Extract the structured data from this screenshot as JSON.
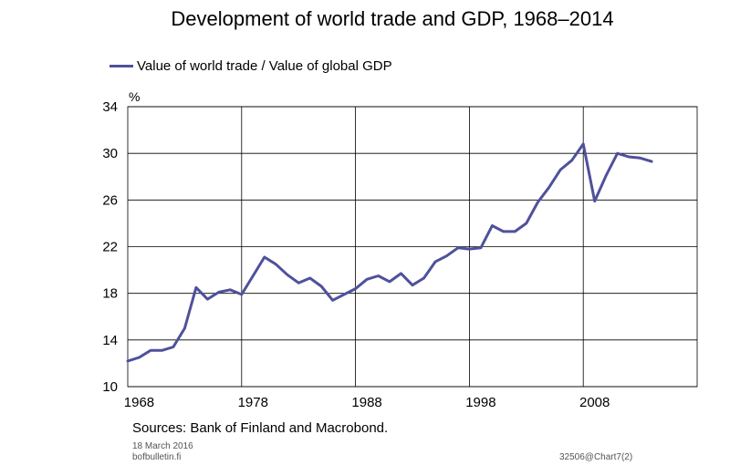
{
  "chart_data": {
    "type": "line",
    "title": "Development of world trade and GDP, 1968–2014",
    "ylabel": "%",
    "ylim": [
      10,
      34
    ],
    "yticks": [
      10,
      14,
      18,
      22,
      26,
      30,
      34
    ],
    "xlim": [
      1967,
      2017
    ],
    "xtick_labels": [
      "1968",
      "1978",
      "1988",
      "1998",
      "2008"
    ],
    "vgrid_years": [
      1977,
      1987,
      1997,
      2007
    ],
    "grid": true,
    "legend_position": "top-left",
    "line_color": "#4f519b",
    "series": [
      {
        "name": "Value of world trade / Value of global GDP",
        "x": [
          1967,
          1968,
          1969,
          1970,
          1971,
          1972,
          1973,
          1974,
          1975,
          1976,
          1977,
          1978,
          1979,
          1980,
          1981,
          1982,
          1983,
          1984,
          1985,
          1986,
          1987,
          1988,
          1989,
          1990,
          1991,
          1992,
          1993,
          1994,
          1995,
          1996,
          1997,
          1998,
          1999,
          2000,
          2001,
          2002,
          2003,
          2004,
          2005,
          2006,
          2007,
          2008,
          2009,
          2010,
          2011,
          2012,
          2013
        ],
        "values": [
          12.2,
          12.5,
          13.1,
          13.1,
          13.4,
          15.0,
          18.5,
          17.5,
          18.1,
          18.3,
          17.9,
          19.5,
          21.1,
          20.5,
          19.6,
          18.9,
          19.3,
          18.6,
          17.4,
          17.9,
          18.4,
          19.2,
          19.5,
          19.0,
          19.7,
          18.7,
          19.3,
          20.7,
          21.2,
          21.9,
          21.8,
          21.9,
          23.8,
          23.3,
          23.3,
          24.0,
          25.8,
          27.1,
          28.6,
          29.4,
          30.8,
          25.9,
          28.1,
          30.0,
          29.7,
          29.6,
          29.3
        ]
      }
    ]
  },
  "source_note": "Sources: Bank of Finland and Macrobond.",
  "footer": {
    "date": "18 March 2016",
    "site": "bofbulletin.fi",
    "code": "32506@Chart7(2)"
  }
}
